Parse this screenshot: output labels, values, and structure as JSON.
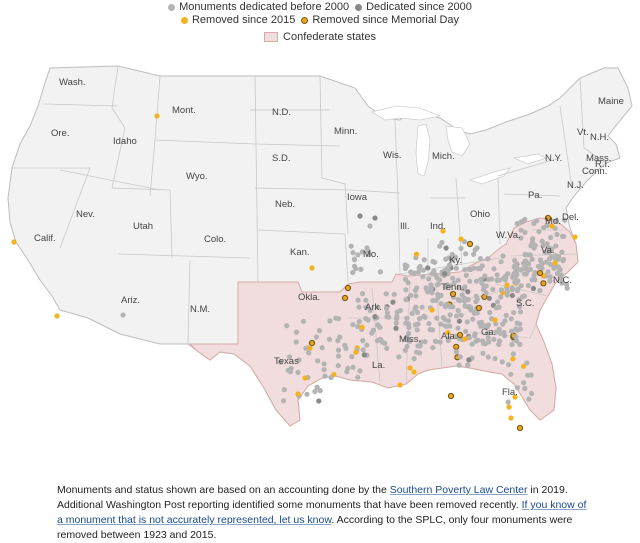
{
  "legend": {
    "before_2000": "Monuments dedicated before 2000",
    "since_2000": "Dedicated since 2000",
    "removed_2015": "Removed since 2015",
    "removed_memorial": "Removed since Memorial Day",
    "confederate": "Confederate states"
  },
  "colors": {
    "before_2000": "#b3b3b3",
    "since_2000": "#8a8a8a",
    "removed_2015": "#f2b31e",
    "removed_memorial": "#c98e16",
    "confederate_fill": "#f1dddd",
    "confederate_border": "#d8a9a9",
    "land": "#f2f2f2",
    "state_line": "#c8c8c8"
  },
  "states": [
    "Wash.",
    "Ore.",
    "Calif.",
    "Idaho",
    "Mont.",
    "Wyo.",
    "Nev.",
    "Utah",
    "Colo.",
    "Ariz.",
    "N.M.",
    "N.D.",
    "S.D.",
    "Neb.",
    "Kan.",
    "Okla.",
    "Texas",
    "Minn.",
    "Iowa",
    "Mo.",
    "Ark.",
    "La.",
    "Wis.",
    "Ill.",
    "Mich.",
    "Ind.",
    "Ohio",
    "Ky.",
    "Tenn.",
    "Miss.",
    "Ala.",
    "Ga.",
    "Fla.",
    "S.C.",
    "N.C.",
    "Va.",
    "W.Va.",
    "Pa.",
    "N.Y.",
    "Md.",
    "Del.",
    "N.J.",
    "Conn.",
    "R.I.",
    "Mass.",
    "N.H.",
    "Vt.",
    "Maine"
  ],
  "footnote": {
    "text1": "Monuments and status shown are based on an accounting done by the ",
    "link1": "Southern Poverty Law Center",
    "text2": " in 2019. Additional Washington Post reporting identified some monuments that have been removed recently. ",
    "link2": "If you know of a monument that is not accurately represented, let us know",
    "text3": ". According to the SPLC, only four monuments were removed between 1923 and 2015."
  }
}
